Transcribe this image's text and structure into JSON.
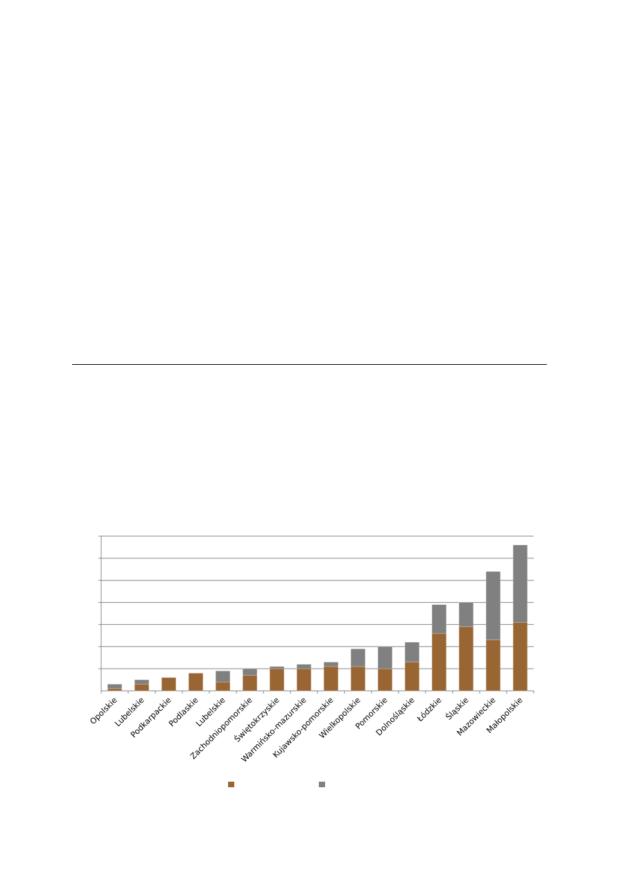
{
  "chart_data": {
    "type": "bar",
    "stacked": true,
    "title": "",
    "xlabel": "",
    "ylabel": "",
    "ylim": [
      0,
      7
    ],
    "grid": true,
    "legend": "bottom",
    "categories": [
      "Opolskie",
      "Lubelskie",
      "Podkarpackie",
      "Podlaskie",
      "Lubelskie",
      "Zachodniopomorskie",
      "Świętokrzyskie",
      "Warmińsko-mazurskie",
      "Kujawsko-pomorskie",
      "Wielkopolskie",
      "Pomorskie",
      "Dolnośląskie",
      "Łódzkie",
      "Śląskie",
      "Mazowieckie",
      "Małopolskie"
    ],
    "series": [
      {
        "color": "#996633",
        "values": [
          0.1,
          0.3,
          0.6,
          0.8,
          0.4,
          0.7,
          1.0,
          1.0,
          1.1,
          1.1,
          1.0,
          1.3,
          2.6,
          2.9,
          2.3,
          3.1
        ]
      },
      {
        "color": "#808080",
        "values": [
          0.2,
          0.2,
          0.0,
          0.0,
          0.5,
          0.3,
          0.1,
          0.2,
          0.2,
          0.8,
          1.0,
          0.9,
          1.3,
          1.1,
          3.1,
          3.5
        ]
      }
    ]
  }
}
